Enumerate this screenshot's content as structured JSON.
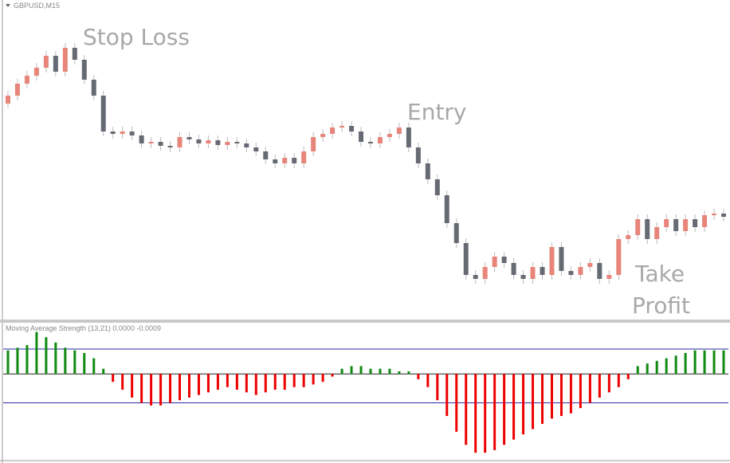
{
  "chart_data": [
    {
      "type": "candlestick",
      "title": "GBPUSD,M15",
      "annotations": [
        "Stop Loss",
        "Entry",
        "Take",
        "Profit"
      ],
      "up_color": "#e8857a",
      "down_color": "#666a73",
      "ylim": [
        0,
        400
      ],
      "open": [
        270,
        280,
        295,
        305,
        315,
        330,
        310,
        340,
        325,
        300,
        280,
        235,
        232,
        235,
        230,
        220,
        222,
        217,
        215,
        228,
        225,
        220,
        224,
        218,
        222,
        220,
        215,
        210,
        200,
        195,
        202,
        195,
        210,
        228,
        232,
        240,
        242,
        235,
        222,
        220,
        228,
        232,
        240,
        215,
        195,
        175,
        155,
        120,
        95,
        55,
        50,
        65,
        78,
        70,
        55,
        50,
        65,
        55,
        90,
        60,
        55,
        65,
        70,
        50,
        55,
        100,
        105,
        125,
        100,
        115,
        125,
        110,
        125,
        115,
        130,
        132
      ],
      "high": [
        286,
        301,
        311,
        321,
        336,
        336,
        346,
        346,
        331,
        306,
        286,
        241,
        241,
        241,
        236,
        228,
        228,
        223,
        234,
        234,
        231,
        230,
        230,
        228,
        228,
        226,
        221,
        216,
        206,
        208,
        208,
        216,
        234,
        238,
        246,
        248,
        248,
        241,
        228,
        234,
        238,
        246,
        246,
        221,
        201,
        181,
        161,
        126,
        101,
        61,
        71,
        84,
        84,
        76,
        61,
        71,
        71,
        96,
        96,
        66,
        71,
        76,
        76,
        61,
        106,
        111,
        131,
        131,
        121,
        131,
        131,
        131,
        131,
        136,
        138,
        138
      ],
      "low": [
        264,
        274,
        289,
        299,
        309,
        304,
        304,
        319,
        294,
        274,
        229,
        226,
        226,
        224,
        214,
        214,
        211,
        209,
        209,
        219,
        214,
        214,
        212,
        212,
        214,
        209,
        204,
        194,
        189,
        189,
        189,
        189,
        204,
        222,
        226,
        234,
        229,
        216,
        214,
        214,
        222,
        226,
        209,
        189,
        169,
        149,
        114,
        89,
        49,
        44,
        44,
        59,
        64,
        49,
        44,
        44,
        49,
        49,
        54,
        49,
        49,
        59,
        44,
        44,
        49,
        94,
        99,
        94,
        94,
        109,
        104,
        104,
        109,
        109,
        124,
        122
      ],
      "close": [
        280,
        295,
        305,
        315,
        330,
        310,
        340,
        325,
        300,
        280,
        235,
        232,
        235,
        230,
        220,
        222,
        217,
        215,
        228,
        225,
        220,
        224,
        218,
        222,
        220,
        215,
        210,
        200,
        195,
        202,
        195,
        210,
        228,
        232,
        240,
        242,
        235,
        222,
        220,
        228,
        232,
        240,
        215,
        195,
        175,
        155,
        120,
        95,
        55,
        50,
        65,
        78,
        70,
        55,
        50,
        65,
        55,
        90,
        60,
        55,
        65,
        70,
        50,
        55,
        100,
        105,
        125,
        100,
        115,
        125,
        110,
        125,
        115,
        130,
        132,
        128
      ]
    },
    {
      "type": "histogram-indicator",
      "title": "Moving Average Strength (13,21) 0.0000 -0.0009",
      "up_color": "#108a10",
      "down_color": "#ee0000",
      "level_color": "#2a2aa8",
      "ylim": [
        -3.3,
        1.8
      ],
      "levels": [
        0.95,
        -1.1
      ],
      "values": [
        0.9,
        1.0,
        1.1,
        1.6,
        1.4,
        1.2,
        1.0,
        0.9,
        0.8,
        0.6,
        0.2,
        -0.3,
        -0.6,
        -0.9,
        -1.1,
        -1.2,
        -1.2,
        -1.1,
        -1.0,
        -0.9,
        -0.8,
        -0.7,
        -0.6,
        -0.5,
        -0.6,
        -0.7,
        -0.8,
        -0.7,
        -0.6,
        -0.6,
        -0.5,
        -0.5,
        -0.4,
        -0.3,
        -0.1,
        0.2,
        0.3,
        0.3,
        0.2,
        0.2,
        0.2,
        0.1,
        0.1,
        -0.2,
        -0.5,
        -1.0,
        -1.6,
        -2.2,
        -2.7,
        -3.0,
        -3.0,
        -2.9,
        -2.7,
        -2.5,
        -2.3,
        -2.1,
        -1.9,
        -1.7,
        -1.6,
        -1.5,
        -1.3,
        -1.1,
        -0.9,
        -0.7,
        -0.5,
        -0.2,
        0.3,
        0.4,
        0.5,
        0.6,
        0.7,
        0.8,
        0.9,
        0.9,
        0.9,
        0.9
      ]
    }
  ]
}
